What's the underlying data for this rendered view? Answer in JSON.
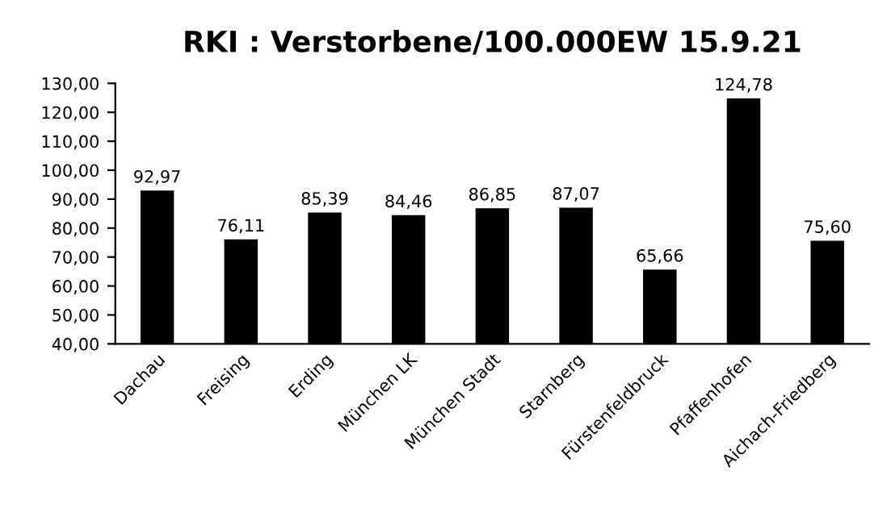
{
  "chart_data": {
    "type": "bar",
    "title": "RKI : Verstorbene/100.000EW 15.9.21",
    "categories": [
      "Dachau",
      "Freising",
      "Erding",
      "München LK",
      "München Stadt",
      "Starnberg",
      "Fürstenfeldbruck",
      "Pfaffenhofen",
      "Aichach-Friedberg"
    ],
    "values": [
      92.97,
      76.11,
      85.39,
      84.46,
      86.85,
      87.07,
      65.66,
      124.78,
      75.6
    ],
    "value_labels": [
      "92,97",
      "76,11",
      "85,39",
      "84,46",
      "86,85",
      "87,07",
      "65,66",
      "124,78",
      "75,60"
    ],
    "color": "#000000",
    "ylim": [
      40,
      130
    ],
    "yticks": [
      {
        "value": 40,
        "label": "40,00"
      },
      {
        "value": 50,
        "label": "50,00"
      },
      {
        "value": 60,
        "label": "60,00"
      },
      {
        "value": 70,
        "label": "70,00"
      },
      {
        "value": 80,
        "label": "80,00"
      },
      {
        "value": 90,
        "label": "90,00"
      },
      {
        "value": 100,
        "label": "100,00"
      },
      {
        "value": 110,
        "label": "110,00"
      },
      {
        "value": 120,
        "label": "120,00"
      },
      {
        "value": 130,
        "label": "130,00"
      }
    ],
    "grid": false
  }
}
